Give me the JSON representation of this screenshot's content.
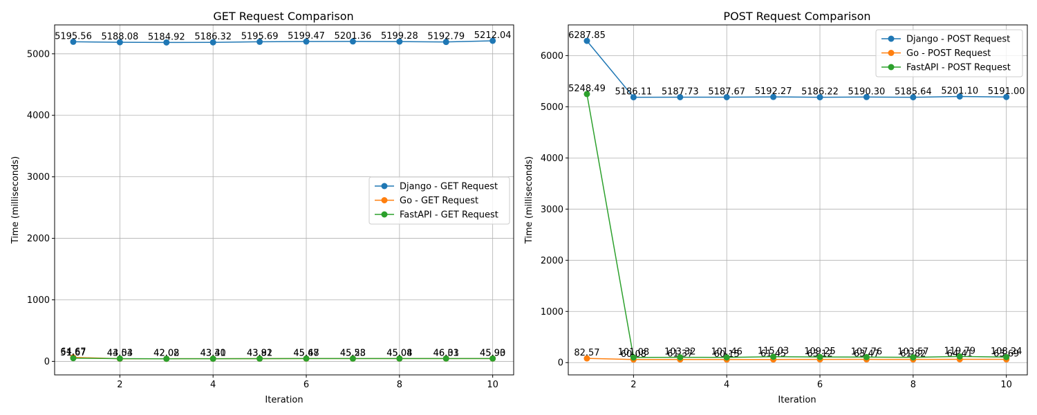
{
  "chart_data": [
    {
      "type": "line",
      "title": "GET Request Comparison",
      "xlabel": "Iteration",
      "ylabel": "Time (milliseconds)",
      "x": [
        1,
        2,
        3,
        4,
        5,
        6,
        7,
        8,
        9,
        10
      ],
      "xlim": [
        0.6,
        10.45
      ],
      "ylim": [
        -220,
        5470
      ],
      "xticks": [
        2,
        4,
        6,
        8,
        10
      ],
      "yticks": [
        0,
        1000,
        2000,
        3000,
        4000,
        5000
      ],
      "grid": true,
      "legend": "center-right",
      "series": [
        {
          "name": "Django - GET Request",
          "color": "#1f77b4",
          "values": [
            5195.56,
            5188.08,
            5184.92,
            5186.32,
            5195.69,
            5199.47,
            5201.36,
            5199.28,
            5192.79,
            5212.04
          ],
          "labels": [
            "5195.56",
            "5188.08",
            "5184.92",
            "5186.32",
            "5195.69",
            "5199.47",
            "5201.36",
            "5199.28",
            "5192.79",
            "5212.04"
          ]
        },
        {
          "name": "Go - GET Request",
          "color": "#ff7f0e",
          "values": [
            64.67,
            43.03,
            42.02,
            43.3,
            43.81,
            45.48,
            45.58,
            45.08,
            46.03,
            45.9
          ],
          "labels": [
            "64.67",
            "43.03",
            "42.02",
            "43.30",
            "43.81",
            "45.48",
            "45.58",
            "45.08",
            "46.03",
            "45.90"
          ]
        },
        {
          "name": "FastAPI - GET Request",
          "color": "#2ca02c",
          "values": [
            51.67,
            44.54,
            42.08,
            43.41,
            43.92,
            45.67,
            45.23,
            45.04,
            46.31,
            45.93
          ],
          "labels": [
            "51.67",
            "44.54",
            "42.08",
            "43.41",
            "43.92",
            "45.67",
            "45.23",
            "45.04",
            "46.31",
            "45.93"
          ]
        }
      ]
    },
    {
      "type": "line",
      "title": "POST Request Comparison",
      "xlabel": "Iteration",
      "ylabel": "Time (milliseconds)",
      "x": [
        1,
        2,
        3,
        4,
        5,
        6,
        7,
        8,
        9,
        10
      ],
      "xlim": [
        0.6,
        10.45
      ],
      "ylim": [
        -240,
        6600
      ],
      "xticks": [
        2,
        4,
        6,
        8,
        10
      ],
      "yticks": [
        0,
        1000,
        2000,
        3000,
        4000,
        5000,
        6000
      ],
      "grid": true,
      "legend": "top-right",
      "series": [
        {
          "name": "Django - POST Request",
          "color": "#1f77b4",
          "values": [
            6287.85,
            5186.11,
            5187.73,
            5187.67,
            5192.27,
            5186.22,
            5190.3,
            5185.64,
            5201.1,
            5191.0
          ],
          "labels": [
            "6287.85",
            "5186.11",
            "5187.73",
            "5187.67",
            "5192.27",
            "5186.22",
            "5190.30",
            "5185.64",
            "5201.10",
            "5191.00"
          ]
        },
        {
          "name": "Go - POST Request",
          "color": "#ff7f0e",
          "values": [
            82.57,
            60.08,
            61.37,
            60.15,
            61.45,
            63.12,
            63.47,
            61.82,
            64.41,
            63.69
          ],
          "labels": [
            "82.57",
            "60.08",
            "61.37",
            "60.15",
            "61.45",
            "63.12",
            "63.47",
            "61.82",
            "64.41",
            "63.69"
          ]
        },
        {
          "name": "FastAPI - POST Request",
          "color": "#2ca02c",
          "values": [
            5248.49,
            101.08,
            103.32,
            101.46,
            115.03,
            109.25,
            107.76,
            103.57,
            119.79,
            108.24
          ],
          "labels": [
            "5248.49",
            "101.08",
            "103.32",
            "101.46",
            "115.03",
            "109.25",
            "107.76",
            "103.57",
            "119.79",
            "108.24"
          ]
        }
      ]
    }
  ]
}
